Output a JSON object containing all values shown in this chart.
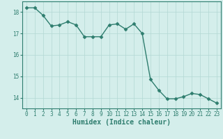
{
  "x": [
    0,
    1,
    2,
    3,
    4,
    5,
    6,
    7,
    8,
    9,
    10,
    11,
    12,
    13,
    14,
    15,
    16,
    17,
    18,
    19,
    20,
    21,
    22,
    23
  ],
  "y": [
    18.2,
    18.2,
    17.85,
    17.35,
    17.4,
    17.55,
    17.4,
    16.85,
    16.85,
    16.85,
    17.4,
    17.45,
    17.2,
    17.45,
    17.0,
    14.85,
    14.35,
    13.95,
    13.95,
    14.05,
    14.2,
    14.15,
    13.95,
    13.75
  ],
  "line_color": "#2e7d6e",
  "marker": "D",
  "marker_size": 2.5,
  "bg_color": "#d4eeeb",
  "grid_color": "#b2d8d4",
  "xlabel": "Humidex (Indice chaleur)",
  "ylim": [
    13.5,
    18.5
  ],
  "xlim": [
    -0.5,
    23.5
  ],
  "yticks": [
    14,
    15,
    16,
    17,
    18
  ],
  "xticks": [
    0,
    1,
    2,
    3,
    4,
    5,
    6,
    7,
    8,
    9,
    10,
    11,
    12,
    13,
    14,
    15,
    16,
    17,
    18,
    19,
    20,
    21,
    22,
    23
  ],
  "tick_color": "#2e7d6e",
  "label_color": "#2e7d6e",
  "spine_color": "#2e7d6e",
  "tick_fontsize": 5.5,
  "xlabel_fontsize": 7.0,
  "linewidth": 1.0
}
